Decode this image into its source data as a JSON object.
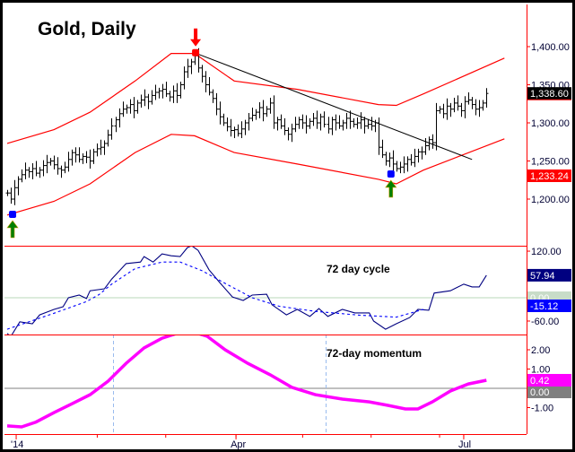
{
  "chart_data": [
    {
      "type": "bar",
      "subtype": "ohlc",
      "title": "Gold, Daily",
      "x_ticks": [
        {
          "label": "'14",
          "index": 2.5
        },
        {
          "label": "Apr",
          "index": 63.5
        },
        {
          "label": "Jul",
          "index": 126.7
        }
      ],
      "y_ticks": [
        "1,200.00",
        "1,250.00",
        "1,300.00",
        "1,350.00",
        "1,400.00"
      ],
      "y_tick_values": [
        1200,
        1250,
        1300,
        1350,
        1400
      ],
      "ylim": [
        1140,
        1455
      ],
      "grid": false,
      "closes": [
        1208,
        1200,
        1215,
        1226,
        1232,
        1238,
        1236,
        1240,
        1234,
        1238,
        1244,
        1248,
        1250,
        1245,
        1240,
        1238,
        1242,
        1252,
        1261,
        1258,
        1252,
        1256,
        1255,
        1250,
        1262,
        1266,
        1268,
        1273,
        1284,
        1296,
        1304,
        1312,
        1318,
        1320,
        1324,
        1316,
        1326,
        1330,
        1334,
        1328,
        1336,
        1340,
        1342,
        1344,
        1338,
        1334,
        1342,
        1336,
        1350,
        1367,
        1374,
        1380,
        1388,
        1372,
        1361,
        1350,
        1340,
        1332,
        1318,
        1308,
        1300,
        1295,
        1290,
        1291,
        1286,
        1292,
        1300,
        1306,
        1310,
        1314,
        1320,
        1312,
        1318,
        1326,
        1300,
        1304,
        1296,
        1290,
        1285,
        1292,
        1298,
        1304,
        1300,
        1296,
        1302,
        1306,
        1300,
        1308,
        1298,
        1292,
        1304,
        1300,
        1296,
        1300,
        1306,
        1302,
        1298,
        1300,
        1304,
        1296,
        1298,
        1296,
        1300,
        1268,
        1258,
        1250,
        1254,
        1246,
        1240,
        1242,
        1246,
        1252,
        1248,
        1256,
        1262,
        1262,
        1270,
        1278,
        1274,
        1316,
        1318,
        1312,
        1322,
        1318,
        1326,
        1322,
        1316,
        1328,
        1330,
        1324,
        1318,
        1320,
        1326,
        1338.6
      ],
      "upper_band": [
        [
          0,
          1273
        ],
        [
          13,
          1291
        ],
        [
          23,
          1314
        ],
        [
          35.5,
          1355
        ],
        [
          45.5,
          1391
        ],
        [
          52,
          1391
        ],
        [
          63,
          1355
        ],
        [
          80.5,
          1344
        ],
        [
          103,
          1324
        ],
        [
          108,
          1323
        ],
        [
          115.5,
          1338
        ],
        [
          138,
          1385
        ]
      ],
      "lower_band": [
        [
          0,
          1179
        ],
        [
          13,
          1197
        ],
        [
          23,
          1220
        ],
        [
          35.5,
          1261
        ],
        [
          45.5,
          1285
        ],
        [
          52,
          1283
        ],
        [
          63,
          1261
        ],
        [
          80.5,
          1246
        ],
        [
          103,
          1226
        ],
        [
          108,
          1220
        ],
        [
          115.5,
          1238
        ],
        [
          138,
          1279
        ]
      ],
      "trendline": [
        [
          52,
          1392
        ],
        [
          129,
          1252
        ]
      ],
      "last_price_label": "1,338.60",
      "lower_band_label": "1,233.24",
      "markers": [
        {
          "index": 1.5,
          "price": 1180,
          "dot": "blue",
          "arrow": "up",
          "arrow_color": "#008000"
        },
        {
          "index": 52.3,
          "price": 1392,
          "dot": "red",
          "arrow": "down",
          "arrow_color": "#ff0000"
        },
        {
          "index": 106.5,
          "price": 1233,
          "dot": "blue",
          "arrow": "up",
          "arrow_color": "#008000"
        }
      ],
      "colors": {
        "bars": "#000000",
        "bands": "#ff0000",
        "trendline": "#000000",
        "axis": "#ff0000"
      }
    },
    {
      "type": "line",
      "annotation": "72 day cycle",
      "y_ticks": [
        "120.00",
        "-60.00"
      ],
      "y_tick_values": [
        120,
        -60
      ],
      "ylim": [
        -100,
        135
      ],
      "zero_line": 0,
      "series": [
        {
          "style": "solid",
          "color": "#000080",
          "points": [
            [
              0,
              -92
            ],
            [
              1,
              -100
            ],
            [
              3.5,
              -62
            ],
            [
              7,
              -67
            ],
            [
              9,
              -44
            ],
            [
              13,
              -30
            ],
            [
              15.5,
              -23
            ],
            [
              17,
              0
            ],
            [
              20,
              7
            ],
            [
              22,
              -2
            ],
            [
              23,
              18
            ],
            [
              27,
              23
            ],
            [
              29,
              48
            ],
            [
              33,
              88
            ],
            [
              37,
              92
            ],
            [
              38,
              106
            ],
            [
              40.5,
              92
            ],
            [
              43,
              113
            ],
            [
              45.5,
              108
            ],
            [
              48,
              106
            ],
            [
              50,
              129
            ],
            [
              51.2,
              134
            ],
            [
              53,
              122
            ],
            [
              56,
              72
            ],
            [
              59,
              39
            ],
            [
              62.5,
              2
            ],
            [
              65.5,
              -7
            ],
            [
              68,
              7
            ],
            [
              72,
              9
            ],
            [
              73.5,
              -18
            ],
            [
              77.5,
              -44
            ],
            [
              80.5,
              -30
            ],
            [
              84,
              -48
            ],
            [
              86.5,
              -28
            ],
            [
              89,
              -48
            ],
            [
              93,
              -30
            ],
            [
              96.5,
              -39
            ],
            [
              100.5,
              -39
            ],
            [
              101.7,
              -60
            ],
            [
              105,
              -81
            ],
            [
              108,
              -67
            ],
            [
              111.7,
              -51
            ],
            [
              114,
              -30
            ],
            [
              117,
              -32
            ],
            [
              118.5,
              12
            ],
            [
              123,
              18
            ],
            [
              126.7,
              35
            ],
            [
              129,
              28
            ],
            [
              131,
              28
            ],
            [
              133,
              57.94
            ]
          ]
        },
        {
          "style": "dashed",
          "color": "#0000ff",
          "points": [
            [
              0,
              -81
            ],
            [
              13,
              -40
            ],
            [
              22,
              -10
            ],
            [
              25.5,
              8
            ],
            [
              29,
              35
            ],
            [
              35.5,
              75
            ],
            [
              43,
              92
            ],
            [
              48,
              92
            ],
            [
              54,
              70
            ],
            [
              60.5,
              37
            ],
            [
              68,
              0
            ],
            [
              75.5,
              -22
            ],
            [
              85.5,
              -35
            ],
            [
              98,
              -45
            ],
            [
              108,
              -50
            ],
            [
              115.5,
              -30
            ]
          ]
        }
      ],
      "value_labels": {
        "solid": "57.94",
        "zero": "0.00",
        "dashed": "-15.12"
      }
    },
    {
      "type": "line",
      "annotation": "72-day momentum",
      "y_ticks": [
        "2.00",
        "1.00",
        "-1.00"
      ],
      "y_tick_values": [
        2,
        1,
        -1
      ],
      "ylim": [
        -2.4,
        2.8
      ],
      "zero_line": 0,
      "cycle_markers": [
        29.5,
        88.5
      ],
      "series": [
        {
          "style": "solid",
          "color": "#ff00ff",
          "points": [
            [
              0,
              -1.95
            ],
            [
              4,
              -2
            ],
            [
              8,
              -1.75
            ],
            [
              13,
              -1.26
            ],
            [
              18,
              -0.8
            ],
            [
              23,
              -0.33
            ],
            [
              28,
              0.37
            ],
            [
              33,
              1.3
            ],
            [
              38,
              2.1
            ],
            [
              43,
              2.6
            ],
            [
              48,
              2.9
            ],
            [
              52,
              2.9
            ],
            [
              55.5,
              2.7
            ],
            [
              60.5,
              2.0
            ],
            [
              66.75,
              1.3
            ],
            [
              73,
              0.7
            ],
            [
              79,
              0.05
            ],
            [
              85.5,
              -0.33
            ],
            [
              93,
              -0.56
            ],
            [
              100.5,
              -0.7
            ],
            [
              105.5,
              -0.88
            ],
            [
              110.5,
              -1.07
            ],
            [
              114,
              -1.07
            ],
            [
              118,
              -0.7
            ],
            [
              123,
              -0.14
            ],
            [
              128,
              0.23
            ],
            [
              133,
              0.42
            ]
          ]
        }
      ],
      "value_labels": {
        "solid": "0.42",
        "zero": "0.00"
      }
    }
  ]
}
